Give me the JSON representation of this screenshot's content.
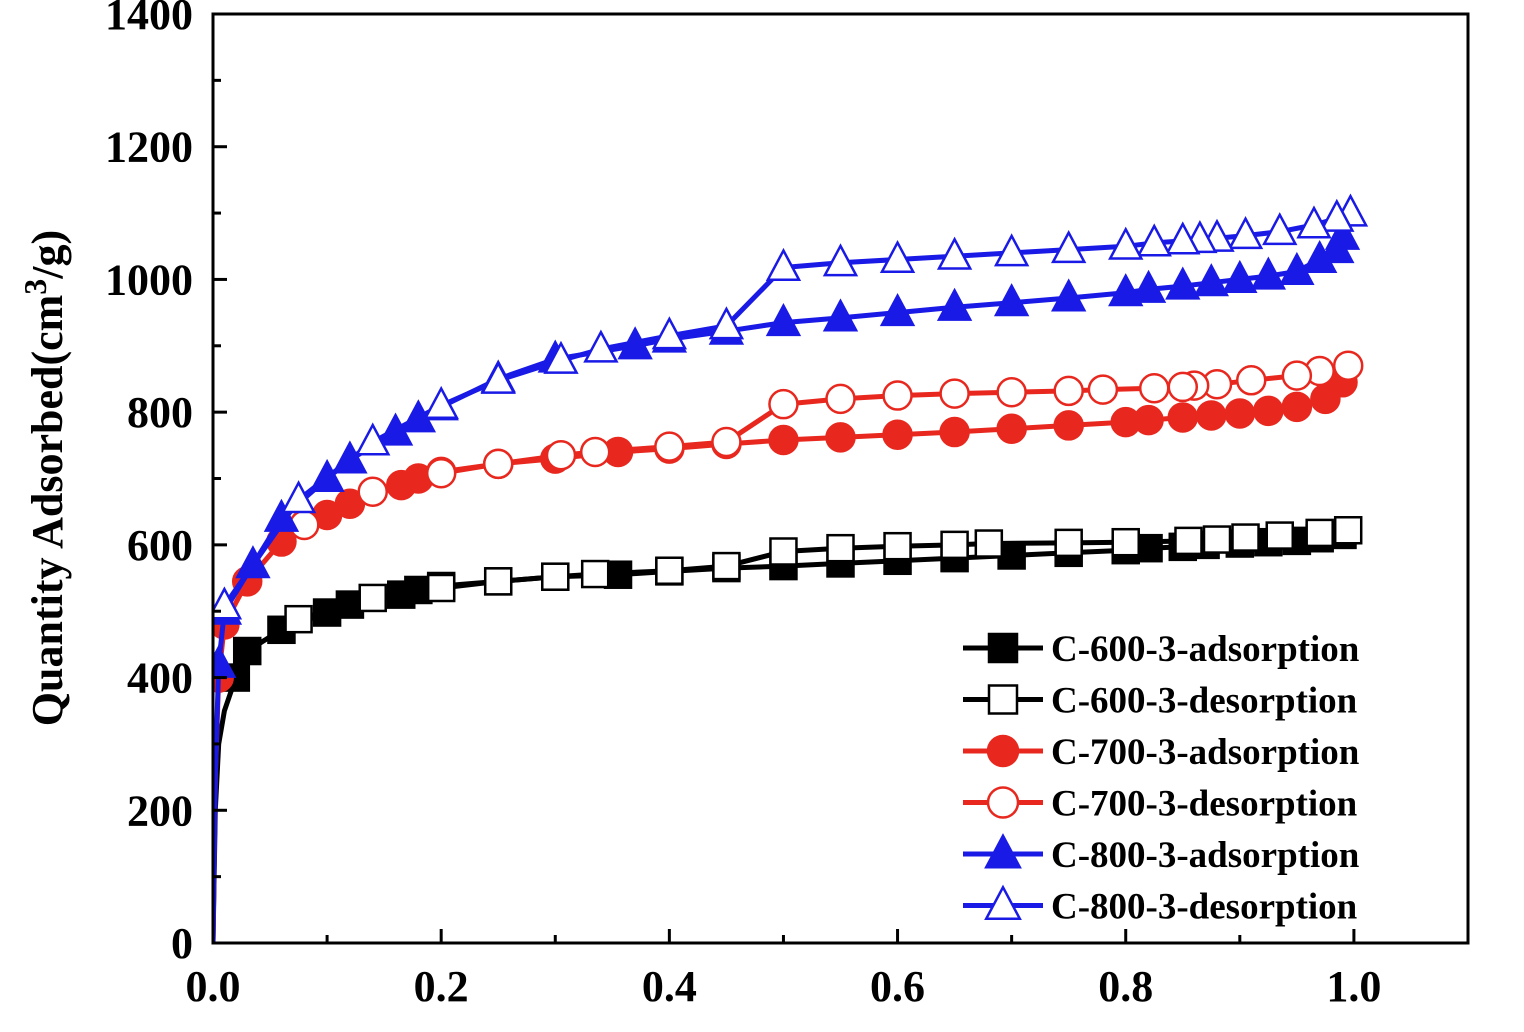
{
  "chart_data": {
    "type": "line",
    "xlabel": "",
    "ylabel_parts": [
      "Quantity Adsorbed(cm",
      "3",
      "/g)"
    ],
    "xlim": [
      0.0,
      1.1
    ],
    "ylim": [
      0,
      1400
    ],
    "x_ticks": [
      0.0,
      0.2,
      0.4,
      0.6,
      0.8,
      1.0
    ],
    "x_tick_labels": [
      "0.0",
      "0.2",
      "0.4",
      "0.6",
      "0.8",
      "1.0"
    ],
    "y_ticks": [
      0,
      200,
      400,
      600,
      800,
      1000,
      1200,
      1400
    ],
    "y_tick_labels": [
      "0",
      "200",
      "400",
      "600",
      "800",
      "1000",
      "1200",
      "1400"
    ],
    "legend_position": "bottom-right",
    "series": [
      {
        "name": "C-600-3-adsorption",
        "color": "#000000",
        "marker": "square",
        "filled": true,
        "x": [
          0.0,
          0.002,
          0.005,
          0.01,
          0.02,
          0.03,
          0.06,
          0.1,
          0.12,
          0.165,
          0.18,
          0.2,
          0.25,
          0.3,
          0.355,
          0.4,
          0.45,
          0.5,
          0.55,
          0.6,
          0.65,
          0.7,
          0.75,
          0.8,
          0.82,
          0.85,
          0.87,
          0.9,
          0.925,
          0.95,
          0.97,
          0.99
        ],
        "y": [
          0,
          200,
          300,
          350,
          400,
          440,
          472,
          498,
          510,
          525,
          532,
          538,
          545,
          552,
          555,
          560,
          565,
          568,
          572,
          576,
          580,
          584,
          588,
          592,
          595,
          597,
          600,
          602,
          604,
          606,
          610,
          615
        ]
      },
      {
        "name": "C-600-3-desorption",
        "color": "#000000",
        "marker": "square",
        "filled": false,
        "x": [
          0.995,
          0.97,
          0.935,
          0.905,
          0.88,
          0.855,
          0.8,
          0.75,
          0.68,
          0.65,
          0.6,
          0.55,
          0.5,
          0.45,
          0.4,
          0.335,
          0.3,
          0.25,
          0.2,
          0.14,
          0.075
        ],
        "y": [
          622,
          618,
          614,
          611,
          608,
          606,
          604,
          603,
          602,
          600,
          598,
          595,
          590,
          568,
          561,
          556,
          552,
          545,
          535,
          520,
          488
        ]
      },
      {
        "name": "C-700-3-adsorption",
        "color": "#e8281e",
        "marker": "circle",
        "filled": true,
        "x": [
          0.0,
          0.002,
          0.005,
          0.01,
          0.03,
          0.06,
          0.1,
          0.12,
          0.165,
          0.18,
          0.2,
          0.25,
          0.3,
          0.355,
          0.4,
          0.45,
          0.5,
          0.55,
          0.6,
          0.65,
          0.7,
          0.75,
          0.8,
          0.82,
          0.85,
          0.875,
          0.9,
          0.925,
          0.95,
          0.975,
          0.99
        ],
        "y": [
          0,
          250,
          400,
          480,
          545,
          605,
          645,
          662,
          690,
          700,
          710,
          722,
          730,
          740,
          745,
          752,
          758,
          762,
          766,
          770,
          775,
          780,
          785,
          788,
          792,
          795,
          798,
          802,
          808,
          820,
          845
        ]
      },
      {
        "name": "C-700-3-desorption",
        "color": "#e8281e",
        "marker": "circle",
        "filled": false,
        "x": [
          0.995,
          0.97,
          0.95,
          0.91,
          0.88,
          0.86,
          0.85,
          0.825,
          0.78,
          0.75,
          0.7,
          0.65,
          0.6,
          0.55,
          0.5,
          0.45,
          0.4,
          0.335,
          0.305,
          0.25,
          0.2,
          0.14,
          0.08
        ],
        "y": [
          870,
          862,
          855,
          848,
          842,
          840,
          838,
          836,
          834,
          832,
          830,
          828,
          825,
          820,
          812,
          755,
          748,
          740,
          735,
          722,
          708,
          680,
          630
        ]
      },
      {
        "name": "C-800-3-adsorption",
        "color": "#1a1ae6",
        "marker": "triangle",
        "filled": true,
        "x": [
          0.0,
          0.002,
          0.005,
          0.01,
          0.035,
          0.06,
          0.1,
          0.12,
          0.16,
          0.18,
          0.2,
          0.25,
          0.3,
          0.37,
          0.4,
          0.45,
          0.5,
          0.55,
          0.6,
          0.65,
          0.7,
          0.75,
          0.8,
          0.82,
          0.85,
          0.875,
          0.9,
          0.925,
          0.95,
          0.97,
          0.985,
          0.99
        ],
        "y": [
          0,
          250,
          420,
          500,
          570,
          640,
          700,
          728,
          770,
          790,
          808,
          850,
          880,
          900,
          910,
          922,
          935,
          942,
          950,
          958,
          965,
          972,
          980,
          985,
          990,
          995,
          1000,
          1005,
          1012,
          1030,
          1045,
          1065
        ]
      },
      {
        "name": "C-800-3-desorption",
        "color": "#1a1ae6",
        "marker": "triangle",
        "filled": false,
        "x": [
          0.997,
          0.985,
          0.965,
          0.935,
          0.905,
          0.88,
          0.865,
          0.85,
          0.825,
          0.8,
          0.75,
          0.7,
          0.65,
          0.6,
          0.55,
          0.5,
          0.45,
          0.4,
          0.34,
          0.305,
          0.25,
          0.2,
          0.14,
          0.075,
          0.01
        ],
        "y": [
          1100,
          1092,
          1082,
          1072,
          1066,
          1062,
          1060,
          1058,
          1055,
          1050,
          1045,
          1040,
          1035,
          1030,
          1025,
          1018,
          930,
          915,
          895,
          878,
          848,
          810,
          755,
          668,
          508
        ]
      }
    ]
  }
}
